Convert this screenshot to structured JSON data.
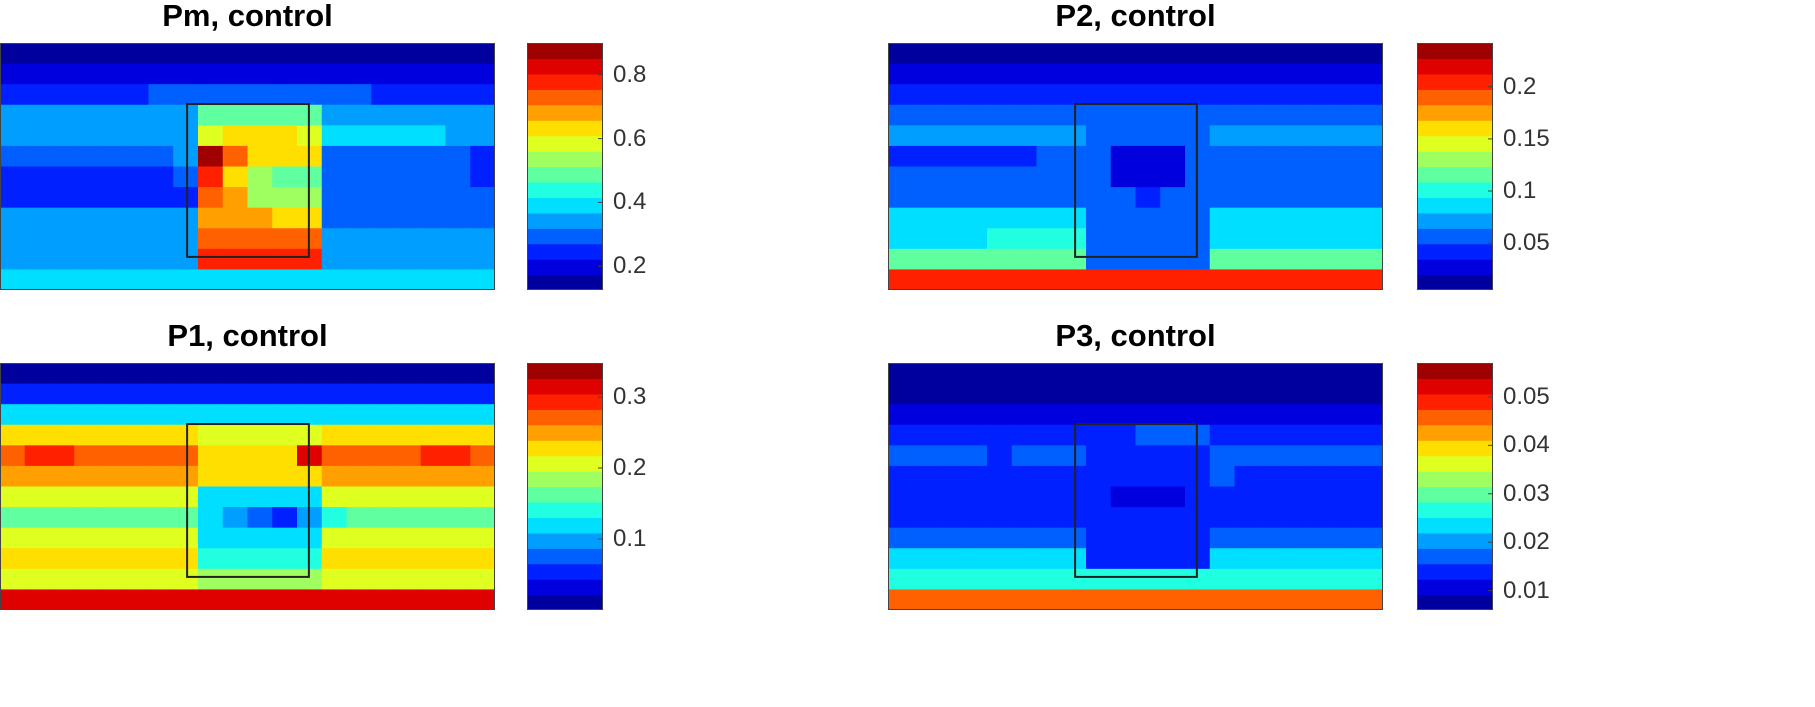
{
  "chart_data": [
    {
      "type": "heatmap",
      "title": "Pm, control",
      "clim": [
        0.125,
        0.9
      ],
      "levels": 16,
      "ticks": [
        0.2,
        0.4,
        0.6,
        0.8
      ],
      "tick_labels": [
        "0.2",
        "0.4",
        "0.6",
        "0.8"
      ],
      "box_outline": true,
      "z": [
        [
          0.15,
          0.15,
          0.15,
          0.15,
          0.15,
          0.15,
          0.15,
          0.15,
          0.15,
          0.15,
          0.15,
          0.15,
          0.15,
          0.15,
          0.15,
          0.15,
          0.15,
          0.15,
          0.15,
          0.15
        ],
        [
          0.2,
          0.2,
          0.2,
          0.2,
          0.2,
          0.2,
          0.2,
          0.2,
          0.2,
          0.2,
          0.2,
          0.2,
          0.2,
          0.2,
          0.2,
          0.2,
          0.2,
          0.2,
          0.2,
          0.2
        ],
        [
          0.26,
          0.26,
          0.26,
          0.26,
          0.26,
          0.26,
          0.3,
          0.3,
          0.3,
          0.3,
          0.3,
          0.3,
          0.3,
          0.3,
          0.3,
          0.26,
          0.26,
          0.26,
          0.26,
          0.26
        ],
        [
          0.33,
          0.33,
          0.33,
          0.33,
          0.33,
          0.33,
          0.33,
          0.33,
          0.47,
          0.47,
          0.47,
          0.47,
          0.47,
          0.36,
          0.36,
          0.36,
          0.36,
          0.36,
          0.33,
          0.33
        ],
        [
          0.33,
          0.33,
          0.33,
          0.33,
          0.33,
          0.33,
          0.33,
          0.33,
          0.6,
          0.62,
          0.62,
          0.62,
          0.6,
          0.38,
          0.38,
          0.38,
          0.38,
          0.38,
          0.33,
          0.33
        ],
        [
          0.3,
          0.3,
          0.3,
          0.3,
          0.3,
          0.3,
          0.3,
          0.33,
          0.88,
          0.75,
          0.65,
          0.62,
          0.62,
          0.3,
          0.3,
          0.3,
          0.3,
          0.3,
          0.3,
          0.27
        ],
        [
          0.24,
          0.24,
          0.24,
          0.24,
          0.24,
          0.24,
          0.24,
          0.28,
          0.78,
          0.65,
          0.55,
          0.5,
          0.5,
          0.3,
          0.3,
          0.3,
          0.3,
          0.3,
          0.3,
          0.26
        ],
        [
          0.27,
          0.27,
          0.27,
          0.27,
          0.27,
          0.27,
          0.27,
          0.27,
          0.75,
          0.66,
          0.55,
          0.55,
          0.55,
          0.3,
          0.3,
          0.3,
          0.3,
          0.3,
          0.3,
          0.3
        ],
        [
          0.32,
          0.32,
          0.32,
          0.32,
          0.32,
          0.32,
          0.32,
          0.32,
          0.7,
          0.66,
          0.66,
          0.62,
          0.62,
          0.3,
          0.3,
          0.3,
          0.3,
          0.3,
          0.3,
          0.3
        ],
        [
          0.34,
          0.34,
          0.34,
          0.34,
          0.34,
          0.34,
          0.34,
          0.34,
          0.74,
          0.74,
          0.74,
          0.74,
          0.74,
          0.32,
          0.32,
          0.32,
          0.32,
          0.32,
          0.32,
          0.32
        ],
        [
          0.35,
          0.35,
          0.35,
          0.35,
          0.35,
          0.35,
          0.35,
          0.35,
          0.8,
          0.8,
          0.8,
          0.8,
          0.8,
          0.33,
          0.33,
          0.33,
          0.33,
          0.33,
          0.33,
          0.33
        ],
        [
          0.4,
          0.4,
          0.4,
          0.4,
          0.4,
          0.4,
          0.4,
          0.4,
          0.4,
          0.4,
          0.4,
          0.4,
          0.4,
          0.4,
          0.4,
          0.4,
          0.4,
          0.4,
          0.4,
          0.4
        ]
      ]
    },
    {
      "type": "heatmap",
      "title": "P2, control",
      "clim": [
        0.005,
        0.242
      ],
      "levels": 16,
      "ticks": [
        0.05,
        0.1,
        0.15,
        0.2
      ],
      "tick_labels": [
        "0.05",
        "0.1",
        "0.15",
        "0.2"
      ],
      "box_outline": true,
      "z": [
        [
          0.015,
          0.015,
          0.015,
          0.015,
          0.015,
          0.015,
          0.015,
          0.015,
          0.015,
          0.015,
          0.015,
          0.015,
          0.015,
          0.015,
          0.015,
          0.015,
          0.015,
          0.015,
          0.015,
          0.015
        ],
        [
          0.02,
          0.02,
          0.02,
          0.02,
          0.02,
          0.02,
          0.02,
          0.02,
          0.02,
          0.02,
          0.02,
          0.02,
          0.02,
          0.02,
          0.02,
          0.02,
          0.02,
          0.02,
          0.02,
          0.02
        ],
        [
          0.04,
          0.04,
          0.04,
          0.04,
          0.04,
          0.04,
          0.04,
          0.04,
          0.04,
          0.04,
          0.04,
          0.04,
          0.04,
          0.04,
          0.04,
          0.04,
          0.04,
          0.04,
          0.04,
          0.04
        ],
        [
          0.06,
          0.06,
          0.06,
          0.06,
          0.06,
          0.06,
          0.06,
          0.06,
          0.05,
          0.05,
          0.05,
          0.06,
          0.06,
          0.06,
          0.06,
          0.06,
          0.06,
          0.06,
          0.06,
          0.06
        ],
        [
          0.07,
          0.07,
          0.07,
          0.07,
          0.07,
          0.07,
          0.07,
          0.07,
          0.05,
          0.05,
          0.05,
          0.05,
          0.05,
          0.07,
          0.07,
          0.07,
          0.07,
          0.07,
          0.07,
          0.07
        ],
        [
          0.04,
          0.04,
          0.04,
          0.04,
          0.04,
          0.04,
          0.06,
          0.06,
          0.05,
          0.03,
          0.03,
          0.03,
          0.05,
          0.06,
          0.06,
          0.06,
          0.06,
          0.06,
          0.06,
          0.06
        ],
        [
          0.05,
          0.05,
          0.05,
          0.05,
          0.05,
          0.05,
          0.05,
          0.05,
          0.05,
          0.03,
          0.03,
          0.03,
          0.05,
          0.05,
          0.05,
          0.05,
          0.05,
          0.05,
          0.05,
          0.05
        ],
        [
          0.06,
          0.06,
          0.06,
          0.06,
          0.06,
          0.06,
          0.06,
          0.06,
          0.05,
          0.05,
          0.04,
          0.05,
          0.05,
          0.06,
          0.06,
          0.06,
          0.06,
          0.06,
          0.06,
          0.06
        ],
        [
          0.08,
          0.08,
          0.08,
          0.08,
          0.08,
          0.08,
          0.08,
          0.08,
          0.05,
          0.05,
          0.05,
          0.05,
          0.05,
          0.08,
          0.08,
          0.08,
          0.08,
          0.08,
          0.08,
          0.08
        ],
        [
          0.09,
          0.09,
          0.09,
          0.09,
          0.1,
          0.1,
          0.1,
          0.1,
          0.05,
          0.05,
          0.05,
          0.05,
          0.05,
          0.09,
          0.09,
          0.09,
          0.09,
          0.09,
          0.09,
          0.09
        ],
        [
          0.11,
          0.11,
          0.11,
          0.11,
          0.12,
          0.12,
          0.12,
          0.12,
          0.05,
          0.05,
          0.05,
          0.05,
          0.05,
          0.11,
          0.11,
          0.11,
          0.11,
          0.11,
          0.11,
          0.11
        ],
        [
          0.2,
          0.2,
          0.2,
          0.2,
          0.2,
          0.2,
          0.2,
          0.2,
          0.2,
          0.2,
          0.2,
          0.2,
          0.2,
          0.2,
          0.2,
          0.2,
          0.2,
          0.2,
          0.2,
          0.2
        ]
      ]
    },
    {
      "type": "heatmap",
      "title": "P1, control",
      "clim": [
        0.0,
        0.348
      ],
      "levels": 16,
      "ticks": [
        0.1,
        0.2,
        0.3
      ],
      "tick_labels": [
        "0.1",
        "0.2",
        "0.3"
      ],
      "box_outline": true,
      "z": [
        [
          0.02,
          0.02,
          0.02,
          0.02,
          0.02,
          0.02,
          0.02,
          0.02,
          0.02,
          0.02,
          0.02,
          0.02,
          0.02,
          0.02,
          0.02,
          0.02,
          0.02,
          0.02,
          0.02,
          0.02
        ],
        [
          0.06,
          0.06,
          0.06,
          0.06,
          0.06,
          0.06,
          0.06,
          0.06,
          0.06,
          0.06,
          0.06,
          0.06,
          0.06,
          0.06,
          0.06,
          0.06,
          0.06,
          0.06,
          0.06,
          0.06
        ],
        [
          0.12,
          0.12,
          0.12,
          0.12,
          0.12,
          0.12,
          0.12,
          0.12,
          0.12,
          0.12,
          0.12,
          0.12,
          0.12,
          0.12,
          0.12,
          0.12,
          0.12,
          0.12,
          0.12,
          0.12
        ],
        [
          0.22,
          0.22,
          0.22,
          0.22,
          0.22,
          0.22,
          0.22,
          0.22,
          0.2,
          0.2,
          0.2,
          0.2,
          0.2,
          0.22,
          0.22,
          0.22,
          0.22,
          0.22,
          0.22,
          0.22
        ],
        [
          0.28,
          0.3,
          0.3,
          0.28,
          0.28,
          0.28,
          0.28,
          0.28,
          0.22,
          0.22,
          0.22,
          0.22,
          0.31,
          0.28,
          0.28,
          0.28,
          0.28,
          0.3,
          0.3,
          0.28
        ],
        [
          0.25,
          0.25,
          0.25,
          0.25,
          0.25,
          0.25,
          0.25,
          0.25,
          0.22,
          0.22,
          0.22,
          0.22,
          0.22,
          0.25,
          0.25,
          0.25,
          0.25,
          0.25,
          0.25,
          0.25
        ],
        [
          0.2,
          0.2,
          0.2,
          0.2,
          0.2,
          0.2,
          0.2,
          0.2,
          0.12,
          0.12,
          0.12,
          0.12,
          0.12,
          0.2,
          0.2,
          0.2,
          0.2,
          0.2,
          0.2,
          0.2
        ],
        [
          0.17,
          0.17,
          0.17,
          0.17,
          0.17,
          0.17,
          0.17,
          0.17,
          0.13,
          0.09,
          0.07,
          0.06,
          0.1,
          0.15,
          0.17,
          0.17,
          0.17,
          0.17,
          0.17,
          0.17
        ],
        [
          0.2,
          0.2,
          0.2,
          0.2,
          0.2,
          0.2,
          0.2,
          0.2,
          0.13,
          0.12,
          0.12,
          0.12,
          0.13,
          0.2,
          0.2,
          0.2,
          0.2,
          0.2,
          0.2,
          0.2
        ],
        [
          0.22,
          0.22,
          0.22,
          0.22,
          0.22,
          0.22,
          0.22,
          0.22,
          0.15,
          0.15,
          0.15,
          0.15,
          0.15,
          0.22,
          0.22,
          0.22,
          0.22,
          0.22,
          0.22,
          0.22
        ],
        [
          0.2,
          0.2,
          0.2,
          0.2,
          0.2,
          0.2,
          0.2,
          0.2,
          0.18,
          0.18,
          0.18,
          0.18,
          0.18,
          0.2,
          0.2,
          0.2,
          0.2,
          0.2,
          0.2,
          0.2
        ],
        [
          0.32,
          0.32,
          0.32,
          0.32,
          0.32,
          0.32,
          0.32,
          0.32,
          0.32,
          0.32,
          0.32,
          0.32,
          0.32,
          0.32,
          0.32,
          0.32,
          0.32,
          0.32,
          0.32,
          0.32
        ]
      ]
    },
    {
      "type": "heatmap",
      "title": "P3, control",
      "clim": [
        0.006,
        0.057
      ],
      "levels": 16,
      "ticks": [
        0.01,
        0.02,
        0.03,
        0.04,
        0.05
      ],
      "tick_labels": [
        "0.01",
        "0.02",
        "0.03",
        "0.04",
        "0.05"
      ],
      "box_outline": true,
      "z": [
        [
          0.008,
          0.008,
          0.008,
          0.008,
          0.008,
          0.008,
          0.008,
          0.008,
          0.008,
          0.008,
          0.008,
          0.008,
          0.008,
          0.008,
          0.008,
          0.008,
          0.008,
          0.008,
          0.008,
          0.008
        ],
        [
          0.008,
          0.008,
          0.008,
          0.008,
          0.008,
          0.008,
          0.008,
          0.008,
          0.008,
          0.008,
          0.008,
          0.008,
          0.008,
          0.008,
          0.008,
          0.008,
          0.008,
          0.008,
          0.008,
          0.008
        ],
        [
          0.012,
          0.012,
          0.012,
          0.012,
          0.012,
          0.012,
          0.012,
          0.012,
          0.012,
          0.012,
          0.012,
          0.012,
          0.012,
          0.012,
          0.012,
          0.012,
          0.012,
          0.012,
          0.012,
          0.012
        ],
        [
          0.014,
          0.014,
          0.014,
          0.014,
          0.014,
          0.014,
          0.014,
          0.014,
          0.014,
          0.014,
          0.016,
          0.016,
          0.016,
          0.014,
          0.014,
          0.014,
          0.014,
          0.014,
          0.014,
          0.014
        ],
        [
          0.017,
          0.017,
          0.017,
          0.017,
          0.013,
          0.017,
          0.017,
          0.017,
          0.014,
          0.014,
          0.014,
          0.014,
          0.014,
          0.017,
          0.017,
          0.017,
          0.017,
          0.017,
          0.017,
          0.017
        ],
        [
          0.014,
          0.014,
          0.014,
          0.014,
          0.014,
          0.014,
          0.014,
          0.014,
          0.014,
          0.014,
          0.014,
          0.014,
          0.014,
          0.016,
          0.014,
          0.014,
          0.014,
          0.014,
          0.014,
          0.014
        ],
        [
          0.014,
          0.014,
          0.014,
          0.014,
          0.014,
          0.014,
          0.014,
          0.014,
          0.014,
          0.011,
          0.011,
          0.011,
          0.014,
          0.014,
          0.014,
          0.014,
          0.014,
          0.014,
          0.014,
          0.014
        ],
        [
          0.014,
          0.014,
          0.014,
          0.014,
          0.014,
          0.014,
          0.014,
          0.014,
          0.014,
          0.014,
          0.014,
          0.014,
          0.014,
          0.014,
          0.014,
          0.014,
          0.014,
          0.014,
          0.014,
          0.014
        ],
        [
          0.018,
          0.018,
          0.018,
          0.018,
          0.018,
          0.018,
          0.018,
          0.018,
          0.014,
          0.014,
          0.014,
          0.014,
          0.014,
          0.018,
          0.018,
          0.018,
          0.018,
          0.018,
          0.018,
          0.018
        ],
        [
          0.022,
          0.022,
          0.022,
          0.022,
          0.022,
          0.022,
          0.022,
          0.022,
          0.015,
          0.015,
          0.015,
          0.015,
          0.015,
          0.022,
          0.022,
          0.022,
          0.022,
          0.022,
          0.022,
          0.022
        ],
        [
          0.027,
          0.027,
          0.027,
          0.027,
          0.027,
          0.027,
          0.027,
          0.027,
          0.027,
          0.027,
          0.027,
          0.027,
          0.027,
          0.027,
          0.027,
          0.027,
          0.027,
          0.027,
          0.027,
          0.027
        ],
        [
          0.045,
          0.045,
          0.045,
          0.045,
          0.045,
          0.045,
          0.045,
          0.045,
          0.045,
          0.045,
          0.045,
          0.045,
          0.045,
          0.045,
          0.045,
          0.045,
          0.045,
          0.045,
          0.045,
          0.045
        ]
      ]
    }
  ]
}
